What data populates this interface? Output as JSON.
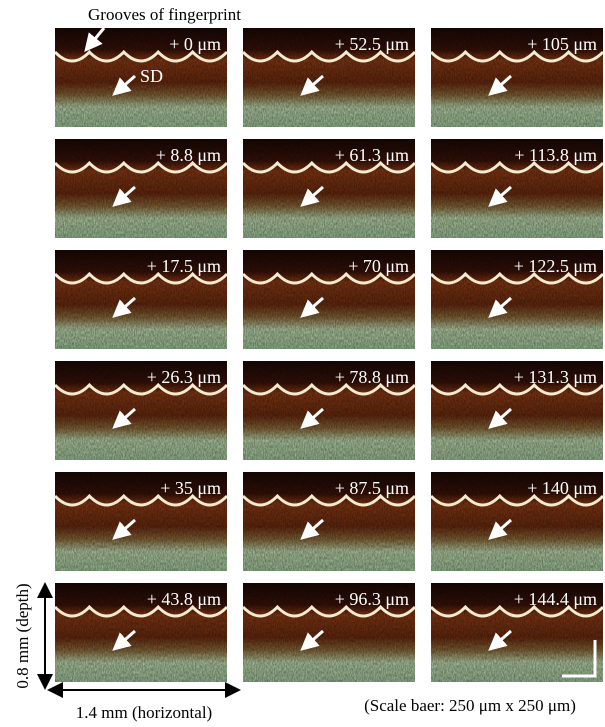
{
  "annotations": {
    "grooves": "Grooves of fingerprint",
    "sd": "SD",
    "depth": "0.8 mm (depth)",
    "horizontal": "1.4 mm (horizontal)",
    "scale_bar": "(Scale baer: 250 μm x 250 μm)"
  },
  "columns": [
    [
      "+ 0 μm",
      "+ 8.8 μm",
      "+ 17.5 μm",
      "+ 26.3 μm",
      "+ 35 μm",
      "+ 43.8 μm"
    ],
    [
      "+ 52.5 μm",
      "+ 61.3 μm",
      "+ 70 μm",
      "+ 78.8 μm",
      "+ 87.5 μm",
      "+ 96.3 μm"
    ],
    [
      "+ 105 μm",
      "+ 113.8 μm",
      "+ 122.5 μm",
      "+ 131.3 μm",
      "+ 140 μm",
      "+ 144.4 μm"
    ]
  ]
}
